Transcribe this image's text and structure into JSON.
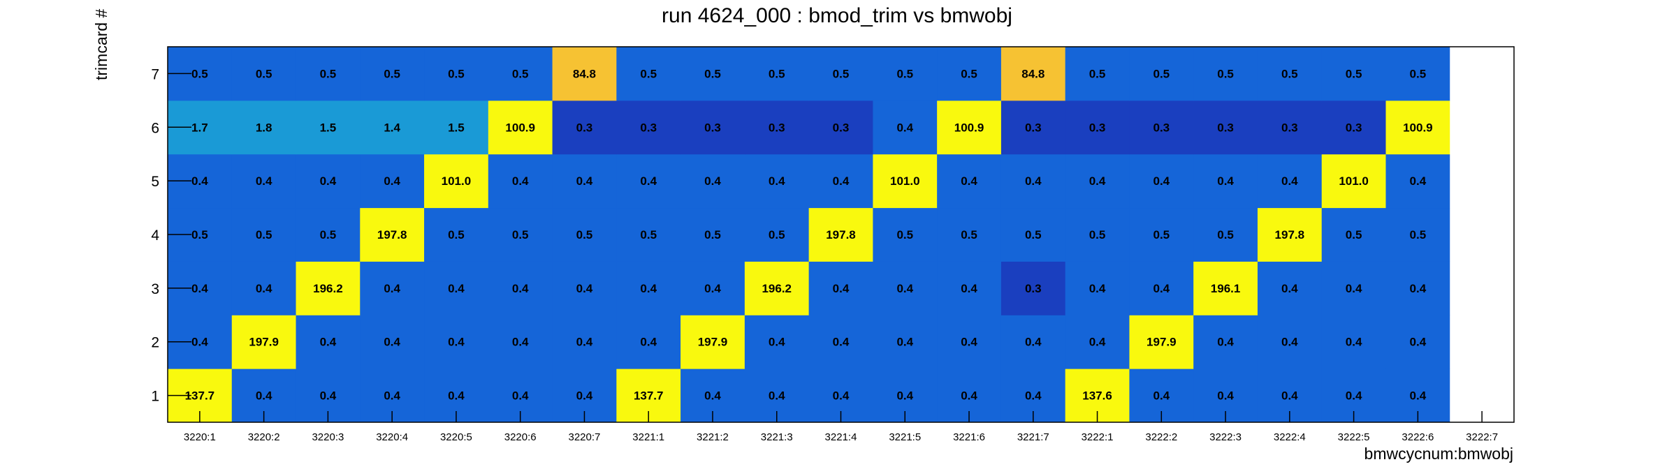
{
  "chart_data": {
    "type": "heatmap",
    "title": "run 4624_000 : bmod_trim vs bmwobj",
    "xlabel": "bmwcycnum:bmwobj",
    "ylabel": "trimcard #",
    "x_categories": [
      "3220:1",
      "3220:2",
      "3220:3",
      "3220:4",
      "3220:5",
      "3220:6",
      "3220:7",
      "3221:1",
      "3221:2",
      "3221:3",
      "3221:4",
      "3221:5",
      "3221:6",
      "3221:7",
      "3222:1",
      "3222:2",
      "3222:3",
      "3222:4",
      "3222:5",
      "3222:6",
      "3222:7"
    ],
    "y_categories": [
      "1",
      "2",
      "3",
      "4",
      "5",
      "6",
      "7"
    ],
    "rows": [
      {
        "y": "1",
        "values": [
          137.7,
          0.4,
          0.4,
          0.4,
          0.4,
          0.4,
          0.4,
          137.7,
          0.4,
          0.4,
          0.4,
          0.4,
          0.4,
          0.4,
          137.6,
          0.4,
          0.4,
          0.4,
          0.4,
          0.4,
          null
        ]
      },
      {
        "y": "2",
        "values": [
          0.4,
          197.9,
          0.4,
          0.4,
          0.4,
          0.4,
          0.4,
          0.4,
          197.9,
          0.4,
          0.4,
          0.4,
          0.4,
          0.4,
          0.4,
          197.9,
          0.4,
          0.4,
          0.4,
          0.4,
          null
        ]
      },
      {
        "y": "3",
        "values": [
          0.4,
          0.4,
          196.2,
          0.4,
          0.4,
          0.4,
          0.4,
          0.4,
          0.4,
          196.2,
          0.4,
          0.4,
          0.4,
          0.3,
          0.4,
          0.4,
          196.1,
          0.4,
          0.4,
          0.4,
          null
        ]
      },
      {
        "y": "4",
        "values": [
          0.5,
          0.5,
          0.5,
          197.8,
          0.5,
          0.5,
          0.5,
          0.5,
          0.5,
          0.5,
          197.8,
          0.5,
          0.5,
          0.5,
          0.5,
          0.5,
          0.5,
          197.8,
          0.5,
          0.5,
          null
        ]
      },
      {
        "y": "5",
        "values": [
          0.4,
          0.4,
          0.4,
          0.4,
          101.0,
          0.4,
          0.4,
          0.4,
          0.4,
          0.4,
          0.4,
          101.0,
          0.4,
          0.4,
          0.4,
          0.4,
          0.4,
          0.4,
          101.0,
          0.4,
          null
        ]
      },
      {
        "y": "6",
        "values": [
          1.7,
          1.8,
          1.5,
          1.4,
          1.5,
          100.9,
          0.3,
          0.3,
          0.3,
          0.3,
          0.3,
          0.4,
          100.9,
          0.3,
          0.3,
          0.3,
          0.3,
          0.3,
          0.3,
          100.9,
          null
        ]
      },
      {
        "y": "7",
        "values": [
          0.5,
          0.5,
          0.5,
          0.5,
          0.5,
          0.5,
          84.8,
          0.5,
          0.5,
          0.5,
          0.5,
          0.5,
          0.5,
          84.8,
          0.5,
          0.5,
          0.5,
          0.5,
          0.5,
          0.5,
          null
        ]
      }
    ],
    "colors": {
      "low_deep": "#1a3fbf",
      "low": "#1565d8",
      "low_teal": "#1a9ad6",
      "mid": "#f6c233",
      "high": "#f9f90e",
      "empty": "#ffffff",
      "frame": "#000000"
    },
    "grid": false,
    "legend": "none"
  }
}
